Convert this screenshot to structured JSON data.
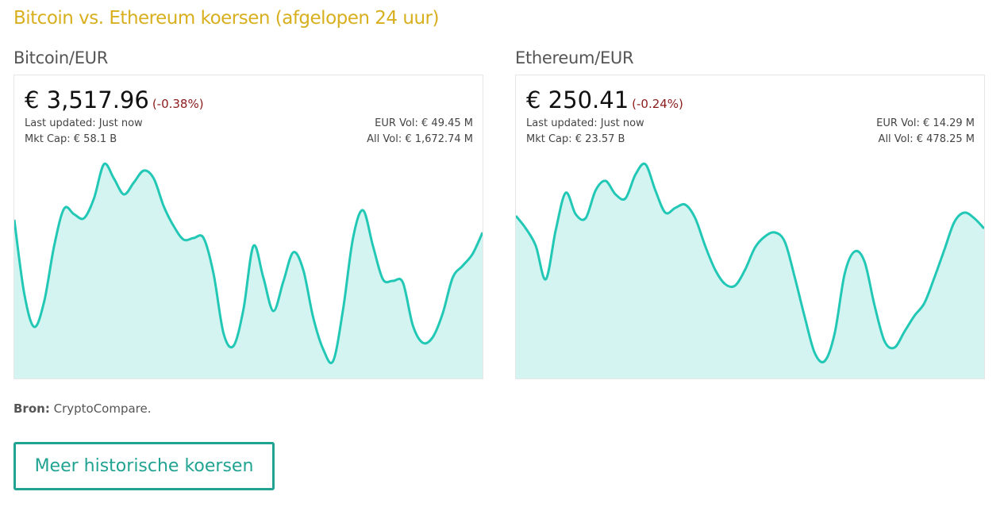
{
  "header": {
    "title": "Bitcoin vs. Ethereum koersen (afgelopen 24 uur)"
  },
  "widgets": [
    {
      "heading": "Bitcoin/EUR",
      "price": "€ 3,517.96",
      "change": "(-0.38%)",
      "updated": "Last updated: Just now",
      "mkt_cap": "Mkt Cap: € 58.1 B",
      "eur_vol": "EUR Vol: € 49.45 M",
      "all_vol": "All Vol: € 1,672.74 M",
      "chart_data": {
        "type": "area",
        "color": "#22c8b5",
        "values": [
          200,
          107,
          65,
          97,
          167,
          214,
          207,
          202,
          227,
          270,
          252,
          232,
          247,
          262,
          252,
          217,
          192,
          175,
          177,
          177,
          132,
          57,
          41,
          87,
          167,
          127,
          85,
          122,
          159,
          137,
          77,
          37,
          22,
          87,
          177,
          212,
          167,
          125,
          123,
          121,
          67,
          45,
          52,
          82,
          127,
          142,
          157,
          184
        ]
      }
    },
    {
      "heading": "Ethereum/EUR",
      "price": "€ 250.41",
      "change": "(-0.24%)",
      "updated": "Last updated: Just now",
      "mkt_cap": "Mkt Cap: € 23.57 B",
      "eur_vol": "EUR Vol: € 14.29 M",
      "all_vol": "All Vol: € 478.25 M",
      "chart_data": {
        "type": "area",
        "color": "#22c8b5",
        "values": [
          205,
          189,
          167,
          125,
          187,
          234,
          207,
          202,
          237,
          249,
          232,
          227,
          257,
          270,
          237,
          209,
          215,
          219,
          202,
          167,
          137,
          119,
          117,
          137,
          165,
          179,
          184,
          172,
          127,
          77,
          32,
          22,
          57,
          132,
          160,
          147,
          92,
          47,
          39,
          59,
          79,
          95,
          127,
          162,
          197,
          209,
          202,
          189
        ]
      }
    }
  ],
  "source": {
    "label": "Bron:",
    "text": "CryptoCompare."
  },
  "button": {
    "label": "Meer historische koersen"
  }
}
